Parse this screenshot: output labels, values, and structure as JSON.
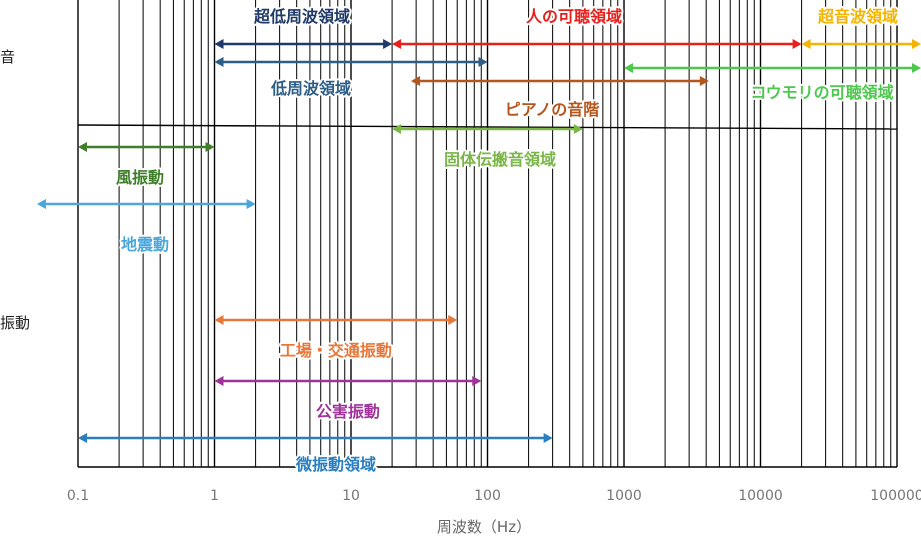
{
  "chart_data": {
    "type": "range",
    "xlabel": "周波数（Hz）",
    "x_scale": "log",
    "xlim": [
      0.1,
      100000
    ],
    "x_ticks": [
      "0.1",
      "1",
      "10",
      "100",
      "1000",
      "10000",
      "100000"
    ],
    "grid": true,
    "side_labels": {
      "sound": "音",
      "vibration": "振動"
    },
    "ranges": [
      {
        "name": "超低周波領域",
        "from": 1,
        "to": 20,
        "color": "#1f3a68"
      },
      {
        "name": "人の可聴領域",
        "from": 20,
        "to": 20000,
        "color": "#e8201c"
      },
      {
        "name": "超音波領域",
        "from": 20000,
        "to": 100000,
        "color": "#f5b400"
      },
      {
        "name": "低周波領域",
        "from": 1,
        "to": 100,
        "color": "#2e5e86"
      },
      {
        "name": "コウモリの可聴領域",
        "from": 1000,
        "to": 100000,
        "color": "#4dc84d"
      },
      {
        "name": "ピアノの音階",
        "from": 27.5,
        "to": 4186,
        "color": "#b5561c"
      },
      {
        "name": "固体伝搬音領域",
        "from": 20,
        "to": 500,
        "color": "#7ab648"
      },
      {
        "name": "風振動",
        "from": 0.1,
        "to": 1,
        "color": "#3f7f2a"
      },
      {
        "name": "地震動",
        "from": 0.05,
        "to": 2,
        "color": "#4aa6dc"
      },
      {
        "name": "工場・交通振動",
        "from": 1,
        "to": 60,
        "color": "#e8783a"
      },
      {
        "name": "公害振動",
        "from": 1,
        "to": 90,
        "color": "#a0339a"
      },
      {
        "name": "微振動領域",
        "from": 0.1,
        "to": 300,
        "color": "#2a7fc0"
      }
    ]
  }
}
